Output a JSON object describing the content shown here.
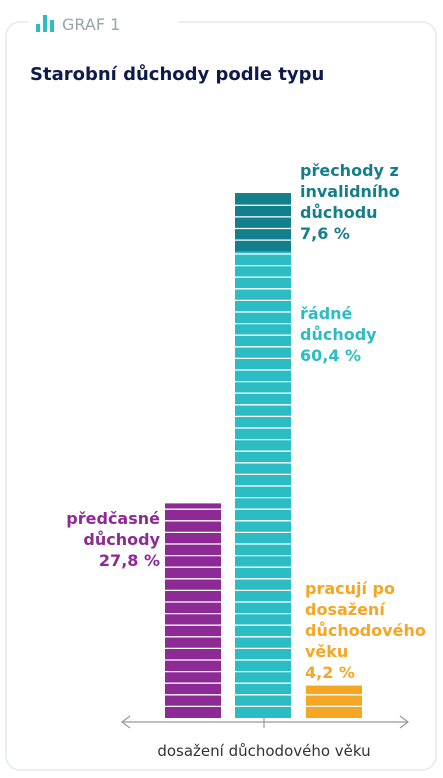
{
  "header": {
    "label": "GRAF 1"
  },
  "chart_data": {
    "type": "bar",
    "stacked": true,
    "title": "Starobní důchody podle typu",
    "x_label": "dosažení důchodového věku",
    "categories": [
      null,
      null,
      null
    ],
    "series": [
      {
        "name": "předčasné důchody",
        "color": "#8e2a96",
        "values": [
          27.8,
          null,
          null
        ],
        "value_labels": [
          "27,8 %",
          null,
          null
        ]
      },
      {
        "name": "řádné důchody",
        "color": "#2bbcc4",
        "values": [
          null,
          60.4,
          null
        ],
        "value_labels": [
          null,
          "60,4 %",
          null
        ]
      },
      {
        "name": "přechody z invalidního důchodu",
        "color": "#137f8c",
        "values": [
          null,
          7.6,
          null
        ],
        "value_labels": [
          null,
          "7,6 %",
          null
        ]
      },
      {
        "name": "pracují po dosažení důchodového věku",
        "color": "#f5a623",
        "values": [
          null,
          null,
          4.2
        ],
        "value_labels": [
          null,
          null,
          "4,2 %"
        ]
      }
    ]
  }
}
